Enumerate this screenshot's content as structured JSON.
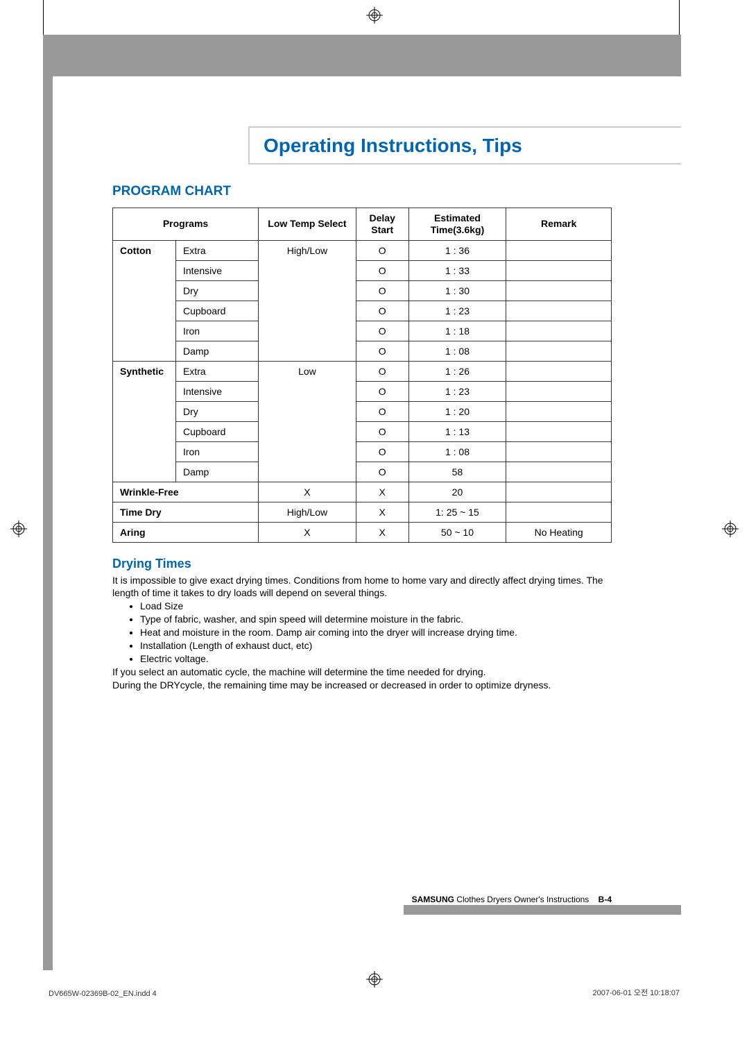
{
  "title": "Operating Instructions, Tips",
  "section_heading": "PROGRAM CHART",
  "table": {
    "headers": {
      "programs": "Programs",
      "lowtemp": "Low Temp Select",
      "delay": "Delay Start",
      "time": "Estimated Time(3.6kg)",
      "remark": "Remark"
    },
    "cotton_label": "Cotton",
    "cotton_lowtemp": "High/Low",
    "cotton_rows": [
      {
        "sub": "Extra",
        "delay": "O",
        "time": "1 : 36",
        "remark": ""
      },
      {
        "sub": "Intensive",
        "delay": "O",
        "time": "1 : 33",
        "remark": ""
      },
      {
        "sub": "Dry",
        "delay": "O",
        "time": "1 : 30",
        "remark": ""
      },
      {
        "sub": "Cupboard",
        "delay": "O",
        "time": "1 : 23",
        "remark": ""
      },
      {
        "sub": "Iron",
        "delay": "O",
        "time": "1 : 18",
        "remark": ""
      },
      {
        "sub": "Damp",
        "delay": "O",
        "time": "1 : 08",
        "remark": ""
      }
    ],
    "synthetic_label": "Synthetic",
    "synthetic_lowtemp": "Low",
    "synthetic_rows": [
      {
        "sub": "Extra",
        "delay": "O",
        "time": "1 : 26",
        "remark": ""
      },
      {
        "sub": "Intensive",
        "delay": "O",
        "time": "1 : 23",
        "remark": ""
      },
      {
        "sub": "Dry",
        "delay": "O",
        "time": "1 : 20",
        "remark": ""
      },
      {
        "sub": "Cupboard",
        "delay": "O",
        "time": "1 : 13",
        "remark": ""
      },
      {
        "sub": "Iron",
        "delay": "O",
        "time": "1 : 08",
        "remark": ""
      },
      {
        "sub": "Damp",
        "delay": "O",
        "time": "58",
        "remark": ""
      }
    ],
    "other_rows": [
      {
        "program": "Wrinkle-Free",
        "lowtemp": "X",
        "delay": "X",
        "time": "20",
        "remark": ""
      },
      {
        "program": "Time Dry",
        "lowtemp": "High/Low",
        "delay": "X",
        "time": "1: 25 ~ 15",
        "remark": ""
      },
      {
        "program": "Aring",
        "lowtemp": "X",
        "delay": "X",
        "time": "50 ~ 10",
        "remark": "No Heating"
      }
    ]
  },
  "drying_times": {
    "heading": "Drying Times",
    "intro": "It is impossible to give exact drying times. Conditions from home to home vary and directly affect drying times. The length of time it takes to dry loads will depend on several things.",
    "bullets": [
      "Load Size",
      "Type of fabric, washer, and spin speed will determine moisture in the fabric.",
      "Heat and moisture in the room. Damp air coming into the dryer will increase drying time.",
      "Installation (Length of exhaust duct, etc)",
      "Electric voltage."
    ],
    "outro1": "If you select an automatic cycle, the machine will determine the time needed for drying.",
    "outro2": "During the DRYcycle, the remaining time may be increased or decreased in order to optimize dryness."
  },
  "footer": {
    "brand": "SAMSUNG",
    "text": " Clothes Dryers Owner's Instructions",
    "page": "B-4"
  },
  "print_footer": {
    "left": "DV665W-02369B-02_EN.indd   4",
    "right": "2007-06-01   오전 10:18:07"
  },
  "colors": {
    "accent": "#0066b3",
    "gray_bar": "#999999",
    "border": "#333333"
  }
}
